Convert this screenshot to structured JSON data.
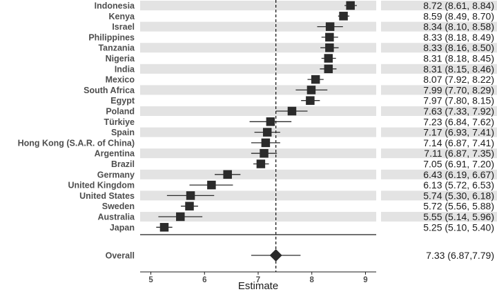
{
  "chart_data": {
    "type": "forest",
    "xlabel": "Estimate",
    "xlim": [
      4.8,
      9.2
    ],
    "x_ticks": [
      5,
      6,
      7,
      8,
      9
    ],
    "reference_line": 7.33,
    "rows": [
      {
        "name": "Indonesia",
        "estimate": 8.72,
        "lower": 8.61,
        "upper": 8.84,
        "label": "8.72 (8.61, 8.84)"
      },
      {
        "name": "Kenya",
        "estimate": 8.59,
        "lower": 8.49,
        "upper": 8.7,
        "label": "8.59 (8.49, 8.70)"
      },
      {
        "name": "Israel",
        "estimate": 8.34,
        "lower": 8.1,
        "upper": 8.58,
        "label": "8.34 (8.10, 8.58)"
      },
      {
        "name": "Philippines",
        "estimate": 8.33,
        "lower": 8.18,
        "upper": 8.49,
        "label": "8.33 (8.18, 8.49)"
      },
      {
        "name": "Tanzania",
        "estimate": 8.33,
        "lower": 8.16,
        "upper": 8.5,
        "label": "8.33 (8.16, 8.50)"
      },
      {
        "name": "Nigeria",
        "estimate": 8.31,
        "lower": 8.18,
        "upper": 8.45,
        "label": "8.31 (8.18, 8.45)"
      },
      {
        "name": "India",
        "estimate": 8.31,
        "lower": 8.15,
        "upper": 8.46,
        "label": "8.31 (8.15, 8.46)"
      },
      {
        "name": "Mexico",
        "estimate": 8.07,
        "lower": 7.92,
        "upper": 8.22,
        "label": "8.07 (7.92, 8.22)"
      },
      {
        "name": "South Africa",
        "estimate": 7.99,
        "lower": 7.7,
        "upper": 8.29,
        "label": "7.99 (7.70, 8.29)"
      },
      {
        "name": "Egypt",
        "estimate": 7.97,
        "lower": 7.8,
        "upper": 8.15,
        "label": "7.97 (7.80, 8.15)"
      },
      {
        "name": "Poland",
        "estimate": 7.63,
        "lower": 7.33,
        "upper": 7.92,
        "label": "7.63 (7.33, 7.92)"
      },
      {
        "name": "Türkiye",
        "estimate": 7.23,
        "lower": 6.84,
        "upper": 7.62,
        "label": "7.23 (6.84, 7.62)"
      },
      {
        "name": "Spain",
        "estimate": 7.17,
        "lower": 6.93,
        "upper": 7.41,
        "label": "7.17 (6.93, 7.41)"
      },
      {
        "name": "Hong Kong (S.A.R. of China)",
        "estimate": 7.14,
        "lower": 6.87,
        "upper": 7.41,
        "label": "7.14 (6.87, 7.41)"
      },
      {
        "name": "Argentina",
        "estimate": 7.11,
        "lower": 6.87,
        "upper": 7.35,
        "label": "7.11 (6.87, 7.35)"
      },
      {
        "name": "Brazil",
        "estimate": 7.05,
        "lower": 6.91,
        "upper": 7.2,
        "label": "7.05 (6.91, 7.20)"
      },
      {
        "name": "Germany",
        "estimate": 6.43,
        "lower": 6.19,
        "upper": 6.67,
        "label": "6.43 (6.19, 6.67)"
      },
      {
        "name": "United Kingdom",
        "estimate": 6.13,
        "lower": 5.72,
        "upper": 6.53,
        "label": "6.13 (5.72, 6.53)"
      },
      {
        "name": "United States",
        "estimate": 5.74,
        "lower": 5.3,
        "upper": 6.18,
        "label": "5.74 (5.30, 6.18)"
      },
      {
        "name": "Sweden",
        "estimate": 5.72,
        "lower": 5.56,
        "upper": 5.88,
        "label": "5.72 (5.56, 5.88)"
      },
      {
        "name": "Australia",
        "estimate": 5.55,
        "lower": 5.14,
        "upper": 5.96,
        "label": "5.55 (5.14, 5.96)"
      },
      {
        "name": "Japan",
        "estimate": 5.25,
        "lower": 5.1,
        "upper": 5.4,
        "label": "5.25 (5.10, 5.40)"
      }
    ],
    "overall": {
      "name": "Overall",
      "estimate": 7.33,
      "lower": 6.87,
      "upper": 7.79,
      "label": "7.33 (6.87,7.79)"
    }
  },
  "colors": {
    "stripe": "#e3e3e3",
    "mark": "#2b2b2b",
    "label": "#4d4d4d",
    "value": "#1a1a1a"
  }
}
